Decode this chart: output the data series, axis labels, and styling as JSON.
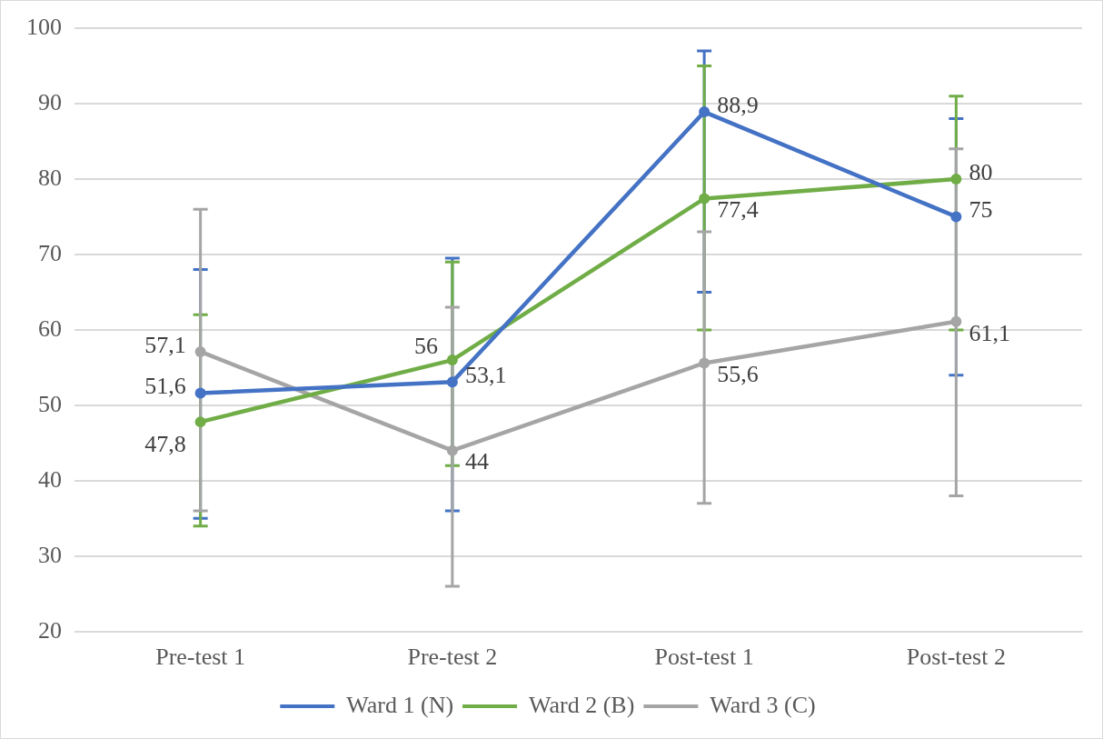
{
  "chart_data": {
    "type": "line",
    "categories": [
      "Pre-test 1",
      "Pre-test 2",
      "Post-test 1",
      "Post-test 2"
    ],
    "series": [
      {
        "name": "Ward 1 (N)",
        "color": "#4472c4",
        "values": [
          51.6,
          53.1,
          88.9,
          75
        ],
        "value_labels": [
          "51,6",
          "53,1",
          "88,9",
          "75"
        ],
        "errors": [
          [
            35,
            68
          ],
          [
            36,
            69.5
          ],
          [
            65,
            97
          ],
          [
            54,
            88
          ]
        ]
      },
      {
        "name": "Ward 2 (B)",
        "color": "#70ad47",
        "values": [
          47.8,
          56,
          77.4,
          80
        ],
        "value_labels": [
          "47,8",
          "56",
          "77,4",
          "80"
        ],
        "errors": [
          [
            34,
            62
          ],
          [
            42,
            69
          ],
          [
            60,
            95
          ],
          [
            60,
            91
          ]
        ]
      },
      {
        "name": "Ward 3 (C)",
        "color": "#a5a5a5",
        "values": [
          57.1,
          44,
          55.6,
          61.1
        ],
        "value_labels": [
          "57,1",
          "44",
          "55,6",
          "61,1"
        ],
        "errors": [
          [
            36,
            76
          ],
          [
            26,
            63
          ],
          [
            37,
            73
          ],
          [
            38,
            84
          ]
        ]
      }
    ],
    "ylim": [
      20,
      100
    ],
    "yticks": [
      20,
      30,
      40,
      50,
      60,
      70,
      80,
      90,
      100
    ],
    "grid": "y",
    "legend": "bottom",
    "marker": "circle",
    "line_style": "solid"
  }
}
